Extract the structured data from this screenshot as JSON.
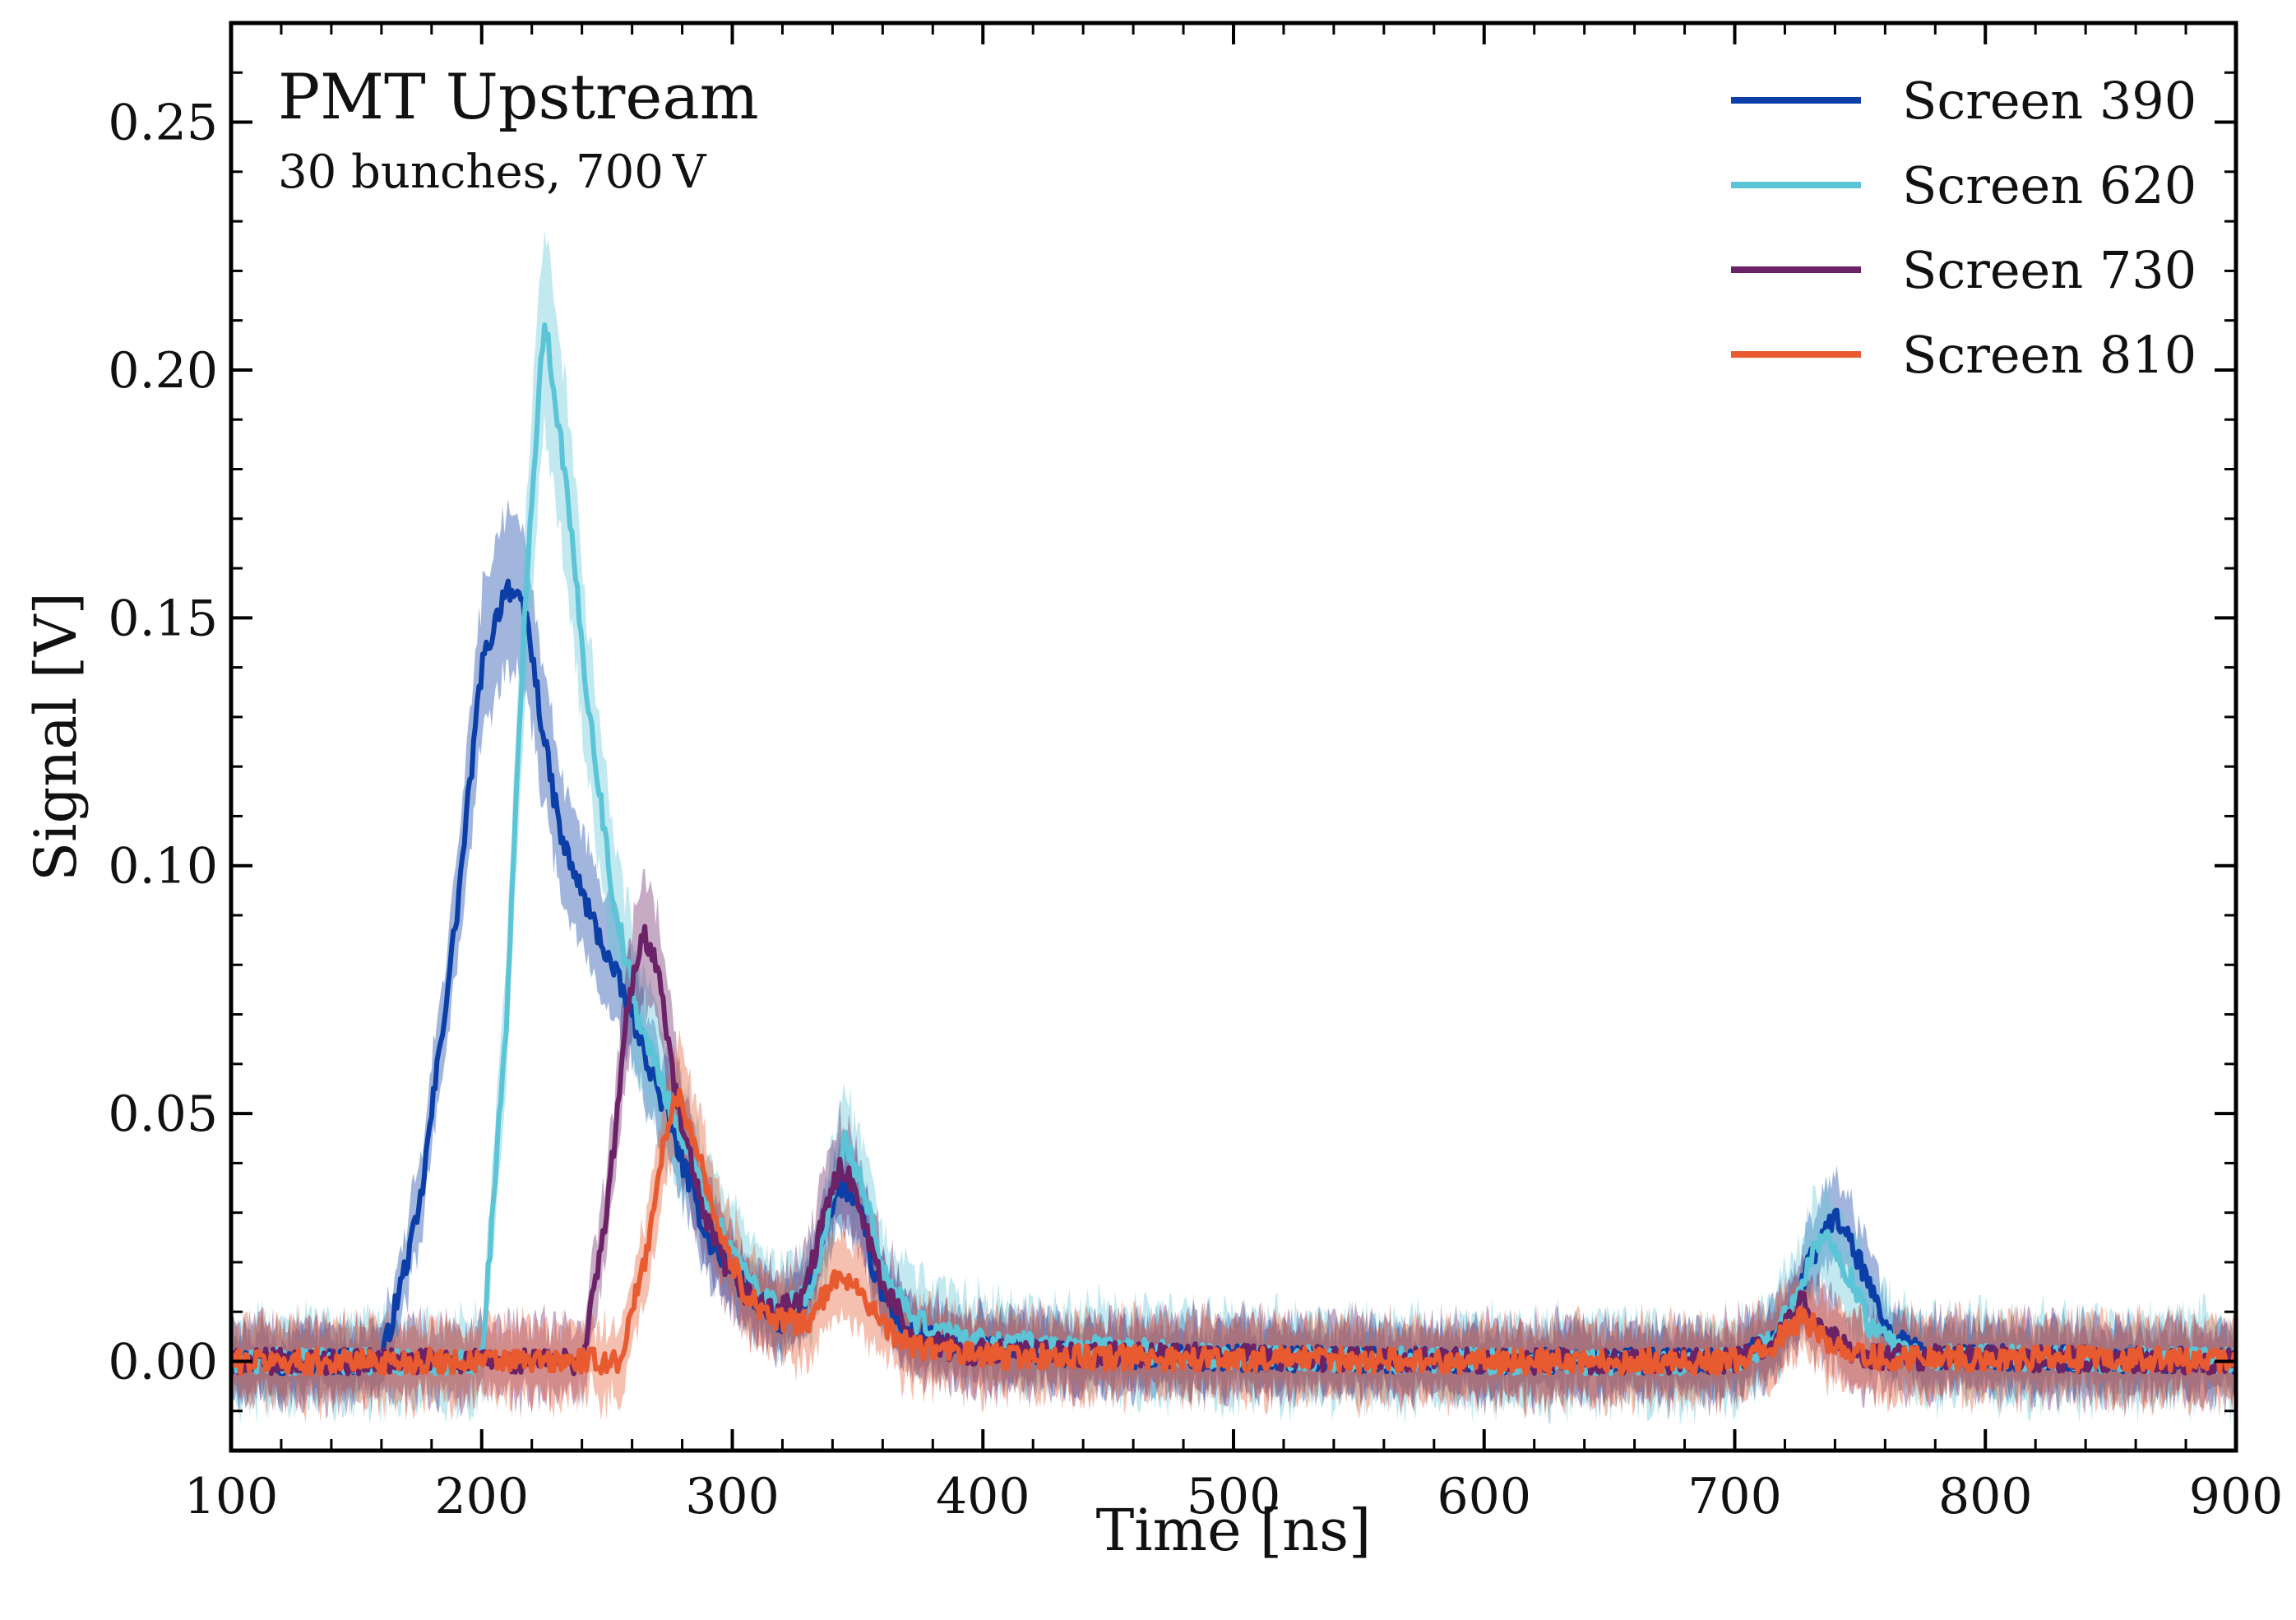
{
  "chart_data": {
    "type": "line",
    "title": "PMT Upstream",
    "subtitle": "30 bunches, 700 V",
    "xlabel": "Time [ns]",
    "ylabel": "Signal [V]",
    "xlim": [
      100,
      900
    ],
    "ylim": [
      -0.018,
      0.27
    ],
    "x_ticks": [
      100,
      200,
      300,
      400,
      500,
      600,
      700,
      800,
      900
    ],
    "x_tick_labels": [
      "100",
      "200",
      "300",
      "400",
      "500",
      "600",
      "700",
      "800",
      "900"
    ],
    "y_ticks": [
      0.0,
      0.05,
      0.1,
      0.15,
      0.2,
      0.25
    ],
    "y_tick_labels": [
      "0.00",
      "0.05",
      "0.10",
      "0.15",
      "0.20",
      "0.25"
    ],
    "legend_position": "top-right",
    "band_description": "shaded band = shot-to-shot spread around the mean signal",
    "series": [
      {
        "name": "Screen 390",
        "color": "#0b3ea6",
        "points": [
          [
            100,
            0.0
          ],
          [
            160,
            0.0
          ],
          [
            175,
            0.03
          ],
          [
            190,
            0.09
          ],
          [
            200,
            0.14
          ],
          [
            210,
            0.157
          ],
          [
            218,
            0.15
          ],
          [
            225,
            0.125
          ],
          [
            232,
            0.105
          ],
          [
            245,
            0.088
          ],
          [
            260,
            0.07
          ],
          [
            275,
            0.048
          ],
          [
            290,
            0.025
          ],
          [
            300,
            0.018
          ],
          [
            310,
            0.012
          ],
          [
            320,
            0.008
          ],
          [
            330,
            0.012
          ],
          [
            337,
            0.028
          ],
          [
            344,
            0.036
          ],
          [
            351,
            0.03
          ],
          [
            358,
            0.015
          ],
          [
            370,
            0.006
          ],
          [
            390,
            0.003
          ],
          [
            450,
            0.001
          ],
          [
            600,
            0.0
          ],
          [
            700,
            0.0
          ],
          [
            720,
            0.006
          ],
          [
            730,
            0.02
          ],
          [
            740,
            0.03
          ],
          [
            750,
            0.02
          ],
          [
            760,
            0.006
          ],
          [
            775,
            0.001
          ],
          [
            900,
            0.0
          ]
        ],
        "band_halfwidth": 0.006
      },
      {
        "name": "Screen 620",
        "color": "#5bc4d6",
        "points": [
          [
            100,
            0.0
          ],
          [
            200,
            0.0
          ],
          [
            210,
            0.07
          ],
          [
            218,
            0.16
          ],
          [
            225,
            0.211
          ],
          [
            233,
            0.18
          ],
          [
            242,
            0.135
          ],
          [
            252,
            0.095
          ],
          [
            262,
            0.07
          ],
          [
            275,
            0.052
          ],
          [
            290,
            0.032
          ],
          [
            305,
            0.018
          ],
          [
            320,
            0.01
          ],
          [
            332,
            0.015
          ],
          [
            340,
            0.032
          ],
          [
            345,
            0.044
          ],
          [
            352,
            0.035
          ],
          [
            360,
            0.018
          ],
          [
            372,
            0.008
          ],
          [
            400,
            0.004
          ],
          [
            500,
            0.001
          ],
          [
            600,
            0.0
          ],
          [
            700,
            0.0
          ],
          [
            715,
            0.004
          ],
          [
            725,
            0.015
          ],
          [
            735,
            0.026
          ],
          [
            745,
            0.018
          ],
          [
            755,
            0.006
          ],
          [
            770,
            0.001
          ],
          [
            900,
            0.0
          ]
        ],
        "band_halfwidth": 0.008
      },
      {
        "name": "Screen 730",
        "color": "#6b2266",
        "points": [
          [
            100,
            0.0
          ],
          [
            240,
            0.0
          ],
          [
            250,
            0.03
          ],
          [
            258,
            0.07
          ],
          [
            264,
            0.087
          ],
          [
            270,
            0.08
          ],
          [
            278,
            0.052
          ],
          [
            288,
            0.03
          ],
          [
            300,
            0.016
          ],
          [
            315,
            0.01
          ],
          [
            328,
            0.012
          ],
          [
            336,
            0.028
          ],
          [
            343,
            0.04
          ],
          [
            350,
            0.034
          ],
          [
            358,
            0.018
          ],
          [
            370,
            0.006
          ],
          [
            390,
            0.002
          ],
          [
            600,
            0.0
          ],
          [
            700,
            0.0
          ],
          [
            715,
            0.004
          ],
          [
            727,
            0.012
          ],
          [
            738,
            0.005
          ],
          [
            750,
            0.001
          ],
          [
            900,
            0.0
          ]
        ],
        "band_halfwidth": 0.007
      },
      {
        "name": "Screen 810",
        "color": "#e85a30",
        "points": [
          [
            100,
            0.0
          ],
          [
            255,
            0.0
          ],
          [
            265,
            0.02
          ],
          [
            272,
            0.042
          ],
          [
            278,
            0.054
          ],
          [
            285,
            0.045
          ],
          [
            295,
            0.026
          ],
          [
            305,
            0.014
          ],
          [
            318,
            0.008
          ],
          [
            330,
            0.008
          ],
          [
            338,
            0.014
          ],
          [
            344,
            0.018
          ],
          [
            352,
            0.014
          ],
          [
            360,
            0.007
          ],
          [
            372,
            0.003
          ],
          [
            400,
            0.001
          ],
          [
            600,
            0.0
          ],
          [
            700,
            0.0
          ],
          [
            715,
            0.003
          ],
          [
            727,
            0.009
          ],
          [
            738,
            0.004
          ],
          [
            750,
            0.001
          ],
          [
            900,
            0.0
          ]
        ],
        "band_halfwidth": 0.007
      }
    ]
  }
}
